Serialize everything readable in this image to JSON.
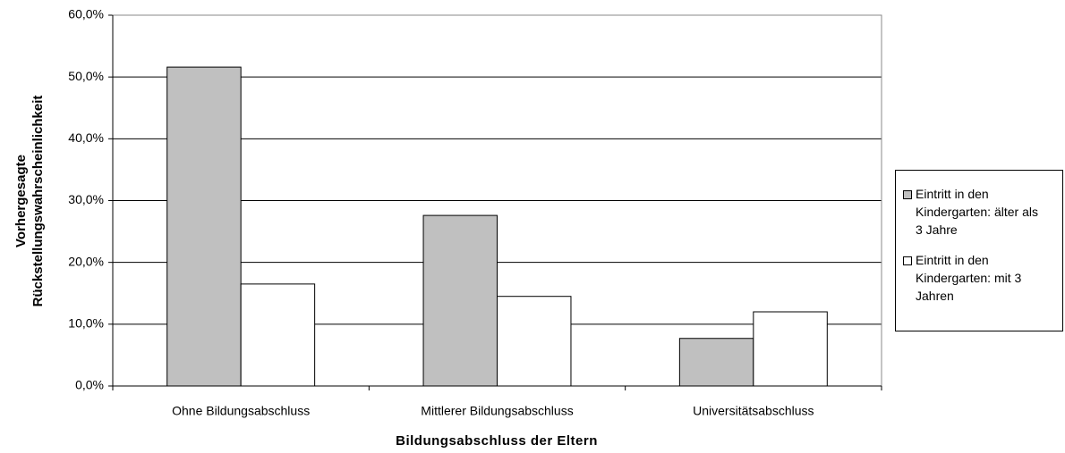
{
  "chart_data": {
    "type": "bar",
    "xlabel": "Bildungsabschluss der Eltern",
    "ylabel": [
      "Vorhergesagte",
      "Rückstellungswahrscheinlichkeit"
    ],
    "categories": [
      "Ohne Bildungsabschluss",
      "Mittlerer Bildungsabschluss",
      "Universitätsabschluss"
    ],
    "series": [
      {
        "name": "Eintritt in den Kindergarten: älter als 3 Jahre",
        "color": "#c0c0c0",
        "values": [
          51.6,
          27.6,
          7.7
        ]
      },
      {
        "name": "Eintritt in den Kindergarten: mit 3 Jahren",
        "color": "#ffffff",
        "values": [
          16.5,
          14.5,
          12.0
        ]
      }
    ],
    "ylim": [
      0,
      60
    ],
    "yticks": [
      {
        "value": 0,
        "label": "0,0%"
      },
      {
        "value": 10,
        "label": "10,0%"
      },
      {
        "value": 20,
        "label": "20,0%"
      },
      {
        "value": 30,
        "label": "30,0%"
      },
      {
        "value": 40,
        "label": "40,0%"
      },
      {
        "value": 50,
        "label": "50,0%"
      },
      {
        "value": 60,
        "label": "60,0%"
      }
    ],
    "grid": true,
    "legend": "right"
  }
}
